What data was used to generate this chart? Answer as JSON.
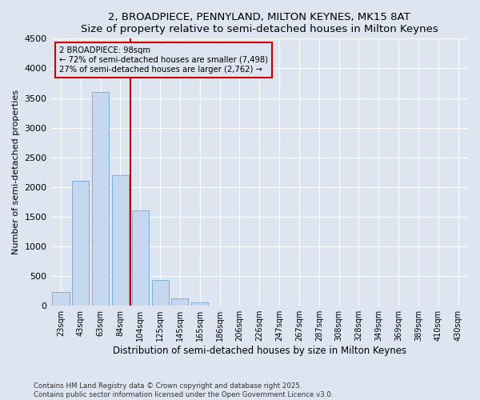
{
  "title": "2, BROADPIECE, PENNYLAND, MILTON KEYNES, MK15 8AT",
  "subtitle": "Size of property relative to semi-detached houses in Milton Keynes",
  "xlabel": "Distribution of semi-detached houses by size in Milton Keynes",
  "ylabel": "Number of semi-detached properties",
  "categories": [
    "23sqm",
    "43sqm",
    "63sqm",
    "84sqm",
    "104sqm",
    "125sqm",
    "145sqm",
    "165sqm",
    "186sqm",
    "206sqm",
    "226sqm",
    "247sqm",
    "267sqm",
    "287sqm",
    "308sqm",
    "328sqm",
    "349sqm",
    "369sqm",
    "389sqm",
    "410sqm",
    "430sqm"
  ],
  "values": [
    230,
    2100,
    3600,
    2200,
    1600,
    430,
    130,
    60,
    0,
    0,
    0,
    0,
    0,
    0,
    0,
    0,
    0,
    0,
    0,
    0,
    0
  ],
  "bar_color": "#c5d8ef",
  "bar_edge_color": "#7bafd4",
  "vline_color": "#cc0000",
  "annotation_title": "2 BROADPIECE: 98sqm",
  "annotation_line1": "← 72% of semi-detached houses are smaller (7,498)",
  "annotation_line2": "27% of semi-detached houses are larger (2,762) →",
  "ylim": [
    0,
    4500
  ],
  "yticks": [
    0,
    500,
    1000,
    1500,
    2000,
    2500,
    3000,
    3500,
    4000,
    4500
  ],
  "background_color": "#dde5f0",
  "grid_color": "#ffffff",
  "footer_line1": "Contains HM Land Registry data © Crown copyright and database right 2025.",
  "footer_line2": "Contains public sector information licensed under the Open Government Licence v3.0."
}
